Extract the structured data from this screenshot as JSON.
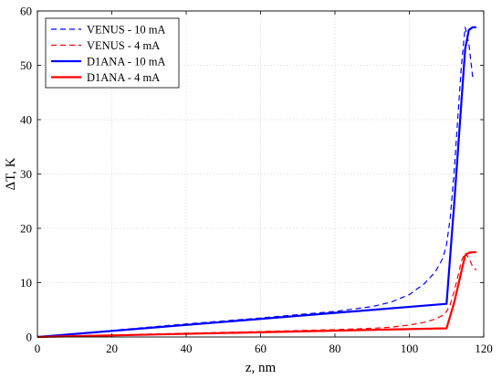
{
  "chart_data": {
    "type": "line",
    "title": "",
    "xlabel": "z, nm",
    "ylabel": "ΔT, K",
    "xlim": [
      0,
      120
    ],
    "ylim": [
      0,
      60
    ],
    "xticks": [
      0,
      20,
      40,
      60,
      80,
      100,
      120
    ],
    "yticks": [
      0,
      10,
      20,
      30,
      40,
      50,
      60
    ],
    "grid": true,
    "legend_position": "top-left",
    "series": [
      {
        "name": "VENUS - 10 mA",
        "color": "#0000ff",
        "style": "dashed",
        "x": [
          0,
          20,
          40,
          60,
          80,
          90,
          95,
          100,
          104,
          107,
          109,
          110,
          111,
          112,
          113,
          114,
          115,
          116,
          117,
          118
        ],
        "y": [
          0,
          1.2,
          2.4,
          3.5,
          4.7,
          5.6,
          6.4,
          7.8,
          9.8,
          12,
          14.5,
          17,
          22,
          30,
          40,
          50,
          57,
          54,
          48,
          47.5
        ]
      },
      {
        "name": "VENUS - 4 mA",
        "color": "#ff0000",
        "style": "dashed",
        "x": [
          0,
          20,
          40,
          60,
          80,
          90,
          95,
          100,
          104,
          107,
          109,
          110,
          111,
          112,
          113,
          114,
          115,
          116,
          117,
          118
        ],
        "y": [
          0,
          0.35,
          0.7,
          1.0,
          1.35,
          1.6,
          1.8,
          2.2,
          2.7,
          3.3,
          4.0,
          4.7,
          6.0,
          8.3,
          11,
          14,
          15.5,
          14.5,
          13,
          12.3
        ]
      },
      {
        "name": "D1ANA - 10 mA",
        "color": "#0000ff",
        "style": "solid",
        "x": [
          0,
          110,
          112,
          115,
          116,
          117,
          118
        ],
        "y": [
          0,
          6.1,
          24,
          53,
          56.5,
          57,
          57
        ]
      },
      {
        "name": "D1ANA - 4 mA",
        "color": "#ff0000",
        "style": "solid",
        "x": [
          0,
          110,
          112,
          115,
          116,
          117,
          118
        ],
        "y": [
          0,
          1.6,
          6.2,
          15,
          15.5,
          15.6,
          15.6
        ]
      }
    ]
  }
}
